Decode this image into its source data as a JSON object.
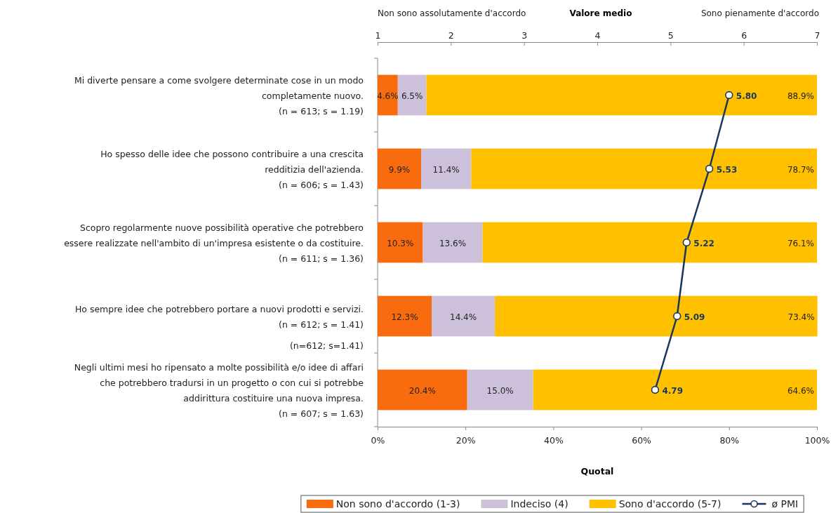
{
  "chart_data": {
    "type": "bar",
    "orientation": "horizontal",
    "stacked": true,
    "categories": [
      "Mi diverte pensare a come svolgere determinate cose in un modo\ncompletamente nuovo.\n(n = 613; s = 1.19)",
      "Ho spesso delle idee che possono contribuire a una crescita\nredditizia dell'azienda.\n(n = 606; s = 1.43)",
      "Scopro regolarmente nuove possibilità operative che potrebbero\nessere realizzate nell'ambito di un'impresa esistente o da costituire.\n(n = 611; s = 1.36)",
      "Ho sempre idee che potrebbero portare a nuovi prodotti e servizi.\n(n = 612; s = 1.41)",
      "Negli ultimi mesi ho ripensato a molte possibilità e/o idee di affari\nche potrebbero tradursi in un progetto o con cui si potrebbe\naddirittura costituire una nuova impresa.\n(n = 607; s = 1.63)"
    ],
    "series": [
      {
        "name": "Non sono d'accordo (1-3)",
        "color": "#f96b0f",
        "values": [
          4.6,
          9.9,
          10.3,
          12.3,
          20.4
        ],
        "value_labels": [
          "4.6%",
          "9.9%",
          "10.3%",
          "12.3%",
          "20.4%"
        ]
      },
      {
        "name": "Indeciso (4)",
        "color": "#ccc0da",
        "values": [
          6.5,
          11.4,
          13.6,
          14.4,
          15.0
        ],
        "value_labels": [
          "6.5%",
          "11.4%",
          "13.6%",
          "14.4%",
          "15.0%"
        ]
      },
      {
        "name": "Sono d'accordo (5-7)",
        "color": "#ffc000",
        "values": [
          88.9,
          78.7,
          76.1,
          73.4,
          64.6
        ],
        "value_labels": [
          "88.9%",
          "78.7%",
          "76.1%",
          "73.4%",
          "64.6%"
        ]
      },
      {
        "name": "ø PMI",
        "type": "line",
        "axis": "x2",
        "color": "#17375e",
        "values": [
          5.8,
          5.53,
          5.22,
          5.09,
          4.79
        ],
        "value_labels": [
          "5.80",
          "5.53",
          "5.22",
          "5.09",
          "4.79"
        ]
      }
    ],
    "xlim": [
      0,
      100
    ],
    "xticks": [
      {
        "value": 0,
        "label": "0%"
      },
      {
        "value": 20,
        "label": "20%"
      },
      {
        "value": 40,
        "label": "40%"
      },
      {
        "value": 60,
        "label": "60%"
      },
      {
        "value": 80,
        "label": "80%"
      },
      {
        "value": 100,
        "label": "100%"
      }
    ],
    "x2lim": [
      1,
      7
    ],
    "x2ticks": [
      1,
      2,
      3,
      4,
      5,
      6,
      7
    ],
    "xlabel": "Quotal",
    "x2label": "Valore medio",
    "annotations": [
      "Non sono assolutamente d'accordo",
      "Sono pienamente d'accordo",
      "(n=612; s=1.41)"
    ],
    "marker": "circle",
    "legend": "bottom",
    "grid": false
  }
}
